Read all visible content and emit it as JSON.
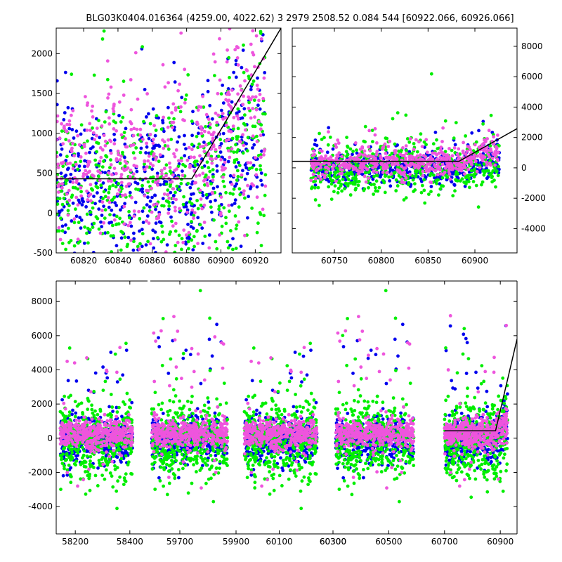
{
  "title": "BLG03K0404.016364 (4259.00, 4022.62)    3 2979 2508.52 0.084 544 [60922.066, 60926.066]",
  "colors": {
    "blue": "#0000ee",
    "green": "#00ee00",
    "magenta": "#ee55dd",
    "line": "#000000"
  },
  "chart_data": [
    {
      "type": "scatter",
      "panel": "top-left",
      "xlim": [
        60804,
        60935
      ],
      "ylim": [
        -500,
        2320
      ],
      "x_ticks": [
        60820,
        60840,
        60860,
        60880,
        60900,
        60920
      ],
      "y_ticks": [
        -500,
        0,
        500,
        1000,
        1500,
        2000
      ],
      "y_axis_side": "left",
      "model_line": [
        [
          60804,
          430
        ],
        [
          60883,
          430
        ],
        [
          60935,
          2320
        ]
      ],
      "series": [
        {
          "color": "blue",
          "segments": [
            [
              60804,
              60926,
              300,
              500
            ]
          ],
          "ramp": [
            60883,
            60926,
            2000
          ]
        },
        {
          "color": "green",
          "segments": [
            [
              60804,
              60926,
              120,
              600
            ]
          ],
          "ramp": [
            60883,
            60926,
            1600
          ]
        },
        {
          "color": "magenta",
          "segments": [
            [
              60804,
              60926,
              550,
              500
            ]
          ],
          "ramp": [
            60883,
            60926,
            2200
          ]
        }
      ]
    },
    {
      "type": "scatter",
      "panel": "top-right",
      "xlim": [
        60705,
        60945
      ],
      "ylim": [
        -5600,
        9200
      ],
      "x_ticks": [
        60750,
        60800,
        60850,
        60900
      ],
      "y_ticks": [
        -4000,
        -2000,
        0,
        2000,
        4000,
        6000,
        8000
      ],
      "y_axis_side": "right",
      "model_line": [
        [
          60705,
          430
        ],
        [
          60883,
          430
        ],
        [
          60945,
          2580
        ]
      ],
      "series": [
        {
          "color": "blue",
          "segments": [
            [
              60725,
              60926,
              -50,
              500
            ]
          ],
          "ramp": [
            60883,
            60926,
            1600
          ]
        },
        {
          "color": "green",
          "segments": [
            [
              60725,
              60926,
              -150,
              900
            ]
          ],
          "ramp": [
            60883,
            60926,
            1400
          ]
        },
        {
          "color": "magenta",
          "segments": [
            [
              60725,
              60926,
              300,
              450
            ]
          ],
          "ramp": [
            60883,
            60926,
            1800
          ]
        }
      ]
    },
    {
      "type": "scatter",
      "panel": "bottom",
      "ylim": [
        -5600,
        9200
      ],
      "x_ticks": [
        58200,
        58400,
        59700,
        59900,
        60100,
        60300,
        60500,
        60700,
        60900
      ],
      "y_ticks": [
        -4000,
        -2000,
        0,
        2000,
        4000,
        6000,
        8000
      ],
      "y_axis_side": "left",
      "model_line": [
        [
          60700,
          430
        ],
        [
          60883,
          430
        ],
        [
          60960,
          5800
        ]
      ],
      "seasons": [
        {
          "xlim": [
            58130,
            58470
          ],
          "data_x": [
            58145,
            58410
          ]
        },
        {
          "xlim": [
            59590,
            59920
          ],
          "data_x": [
            59600,
            59870
          ]
        },
        {
          "xlim": [
            59960,
            60300
          ],
          "data_x": [
            59970,
            60240
          ]
        },
        {
          "xlim": [
            60300,
            60630
          ],
          "data_x": [
            60310,
            60590
          ]
        },
        {
          "xlim": [
            60630,
            60960
          ],
          "data_x": [
            60700,
            60926
          ]
        }
      ],
      "series": [
        {
          "color": "blue",
          "center": -100,
          "spread": 650
        },
        {
          "color": "green",
          "center": -150,
          "spread": 1100
        },
        {
          "color": "magenta",
          "center": 250,
          "spread": 450
        }
      ]
    }
  ]
}
